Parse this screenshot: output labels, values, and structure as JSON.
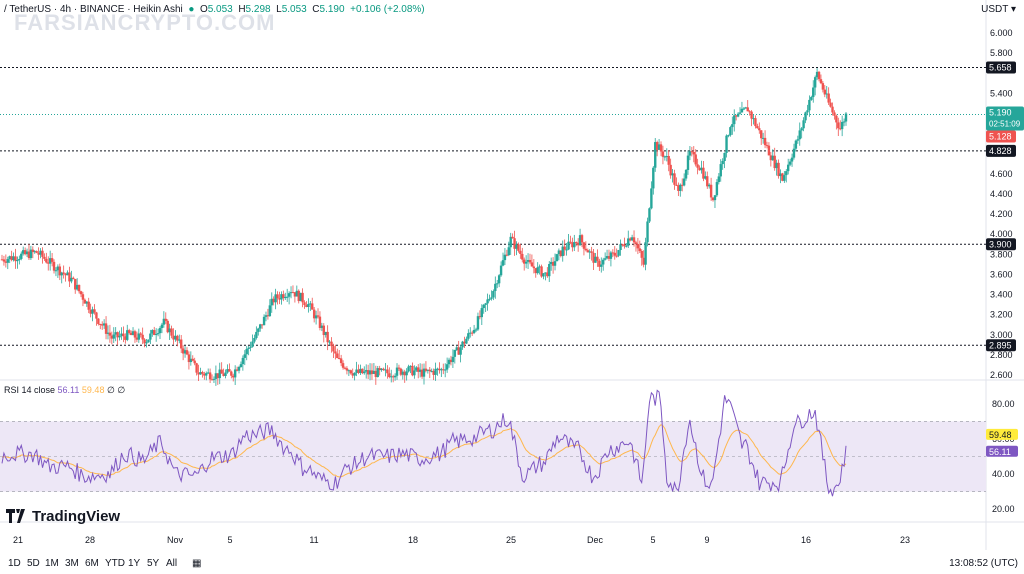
{
  "header": {
    "symbol": "/ TetherUS · 4h · BINANCE · Heikin Ashi",
    "o_label": "O",
    "o": "5.053",
    "h_label": "H",
    "h": "5.298",
    "l_label": "L",
    "l": "5.053",
    "c_label": "C",
    "c": "5.190",
    "change": "+0.106 (+2.08%)"
  },
  "watermark": "FARSIANCRYPTO.COM",
  "currency": "USDT",
  "price_tags": {
    "last": "5.190",
    "countdown": "02:51:09",
    "low_tag": "5.128",
    "levels": [
      "5.658",
      "4.828",
      "3.900",
      "2.895"
    ]
  },
  "rsi_header": {
    "name": "RSI 14 close",
    "rsi": "56.11",
    "ma": "59.48",
    "z1": "∅",
    "z2": "∅"
  },
  "rsi_tags": {
    "ma": "59.48",
    "rsi": "56.11"
  },
  "logo_text": "TradingView",
  "timeframes": [
    "1D",
    "5D",
    "1M",
    "3M",
    "6M",
    "YTD",
    "1Y",
    "5Y",
    "All"
  ],
  "clock": "13:08:52 (UTC)",
  "colors": {
    "up": "#26a69a",
    "down": "#ef5350",
    "rsi": "#7e57c2",
    "rsi_ma": "#ffb74d",
    "band": "#ede7f6"
  },
  "chart_data": {
    "type": "candlestick",
    "price_axis": {
      "ticks": [
        "6.000",
        "5.800",
        "5.400",
        "5.000",
        "4.600",
        "4.400",
        "4.200",
        "4.000",
        "3.800",
        "3.600",
        "3.400",
        "3.200",
        "3.000",
        "2.800",
        "2.600"
      ],
      "range": [
        2.55,
        6.15
      ]
    },
    "horizontal_levels": [
      5.658,
      4.828,
      3.9,
      2.895
    ],
    "last_price": 5.19,
    "x_ticks": [
      "21",
      "28",
      "Nov",
      "5",
      "11",
      "18",
      "25",
      "Dec",
      "5",
      "9",
      "16",
      "23"
    ],
    "close_path": [
      [
        0,
        3.75
      ],
      [
        6,
        3.82
      ],
      [
        12,
        3.55
      ],
      [
        16,
        3.2
      ],
      [
        19,
        2.97
      ],
      [
        22,
        3.0
      ],
      [
        25,
        2.95
      ],
      [
        28,
        3.12
      ],
      [
        31,
        2.88
      ],
      [
        34,
        2.62
      ],
      [
        37,
        2.6
      ],
      [
        40,
        2.62
      ],
      [
        44,
        3.0
      ],
      [
        47,
        3.35
      ],
      [
        50,
        3.45
      ],
      [
        53,
        3.3
      ],
      [
        55,
        3.1
      ],
      [
        58,
        2.75
      ],
      [
        61,
        2.62
      ],
      [
        64,
        2.62
      ],
      [
        67,
        2.62
      ],
      [
        70,
        2.65
      ],
      [
        73,
        2.62
      ],
      [
        76,
        2.65
      ],
      [
        79,
        2.85
      ],
      [
        82,
        3.1
      ],
      [
        85,
        3.45
      ],
      [
        88,
        3.95
      ],
      [
        91,
        3.7
      ],
      [
        94,
        3.6
      ],
      [
        97,
        3.85
      ],
      [
        100,
        3.95
      ],
      [
        103,
        3.7
      ],
      [
        106,
        3.8
      ],
      [
        109,
        4.0
      ],
      [
        111,
        3.7
      ],
      [
        113,
        4.9
      ],
      [
        115,
        4.75
      ],
      [
        117,
        4.4
      ],
      [
        119,
        4.8
      ],
      [
        121,
        4.65
      ],
      [
        123,
        4.35
      ],
      [
        126,
        5.1
      ],
      [
        129,
        5.25
      ],
      [
        132,
        4.9
      ],
      [
        135,
        4.55
      ],
      [
        138,
        5.0
      ],
      [
        141,
        5.6
      ],
      [
        143,
        5.3
      ],
      [
        145,
        5.05
      ],
      [
        146,
        5.19
      ]
    ],
    "rsi": {
      "overbought": 70,
      "oversold": 30,
      "ticks": [
        80,
        60,
        40,
        20
      ],
      "range": [
        15,
        85
      ],
      "last": 56.11,
      "ma_last": 59.48
    }
  }
}
